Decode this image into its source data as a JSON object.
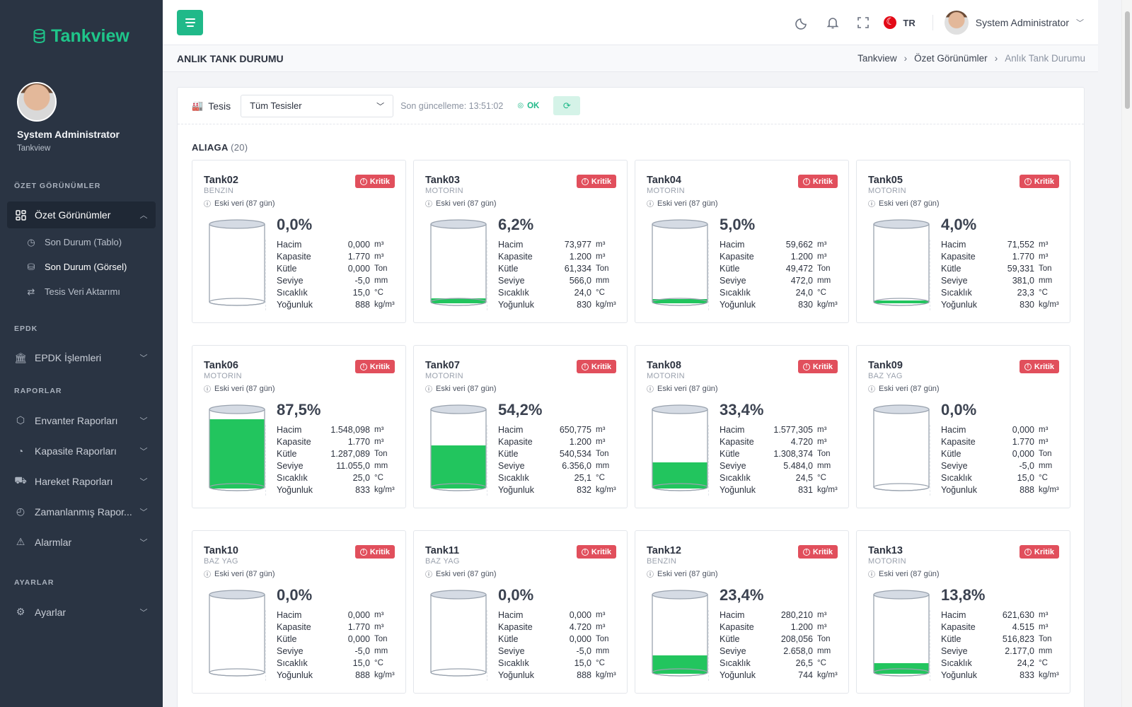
{
  "app": {
    "brand": "Tankview",
    "accent": "#20b989",
    "danger": "#e14f5c"
  },
  "sidebar": {
    "user_name": "System Administrator",
    "user_org": "Tankview",
    "section_overview": "ÖZET GÖRÜNÜMLER",
    "overview_item": "Özet Görünümler",
    "sub_items": [
      "Son Durum (Tablo)",
      "Son Durum (Görsel)",
      "Tesis Veri Aktarımı"
    ],
    "section_epdk": "EPDK",
    "epdk_item": "EPDK İşlemleri",
    "section_reports": "RAPORLAR",
    "report_items": [
      "Envanter Raporları",
      "Kapasite Raporları",
      "Hareket Raporları",
      "Zamanlanmış Rapor...",
      "Alarmlar"
    ],
    "section_settings": "AYARLAR",
    "settings_item": "Ayarlar"
  },
  "topbar": {
    "lang": "TR",
    "user": "System Administrator"
  },
  "page": {
    "title": "ANLIK TANK DURUMU",
    "breadcrumb": [
      "Tankview",
      "Özet Görünümler",
      "Anlık Tank Durumu"
    ]
  },
  "filter": {
    "label": "Tesis",
    "select_value": "Tüm Tesisler",
    "last_update": "Son güncelleme: 13:51:02",
    "status": "OK"
  },
  "group": {
    "name": "ALIAGA",
    "count": "(20)"
  },
  "metric_labels": [
    "Hacim",
    "Kapasite",
    "Kütle",
    "Seviye",
    "Sıcaklık",
    "Yoğunluk"
  ],
  "metric_units": [
    "m³",
    "m³",
    "Ton",
    "mm",
    "°C",
    "kg/m³"
  ],
  "badge_label": "Kritik",
  "stale_label": "Eski veri (87 gün)",
  "tanks": [
    {
      "name": "Tank02",
      "product": "BENZIN",
      "percent": "0,0%",
      "fill": 0.0,
      "values": [
        "0,000",
        "1.770",
        "0,000",
        "-5,0",
        "15,0",
        "888"
      ]
    },
    {
      "name": "Tank03",
      "product": "MOTORIN",
      "percent": "6,2%",
      "fill": 0.062,
      "values": [
        "73,977",
        "1.200",
        "61,334",
        "566,0",
        "24,0",
        "830"
      ]
    },
    {
      "name": "Tank04",
      "product": "MOTORIN",
      "percent": "5,0%",
      "fill": 0.05,
      "values": [
        "59,662",
        "1.200",
        "49,472",
        "472,0",
        "24,0",
        "830"
      ]
    },
    {
      "name": "Tank05",
      "product": "MOTORIN",
      "percent": "4,0%",
      "fill": 0.04,
      "values": [
        "71,552",
        "1.770",
        "59,331",
        "381,0",
        "23,3",
        "830"
      ]
    },
    {
      "name": "Tank06",
      "product": "MOTORIN",
      "percent": "87,5%",
      "fill": 0.875,
      "values": [
        "1.548,098",
        "1.770",
        "1.287,089",
        "11.055,0",
        "25,0",
        "833"
      ]
    },
    {
      "name": "Tank07",
      "product": "MOTORIN",
      "percent": "54,2%",
      "fill": 0.542,
      "values": [
        "650,775",
        "1.200",
        "540,534",
        "6.356,0",
        "25,1",
        "832"
      ]
    },
    {
      "name": "Tank08",
      "product": "MOTORIN",
      "percent": "33,4%",
      "fill": 0.334,
      "values": [
        "1.577,305",
        "4.720",
        "1.308,374",
        "5.484,0",
        "24,5",
        "831"
      ]
    },
    {
      "name": "Tank09",
      "product": "BAZ YAG",
      "percent": "0,0%",
      "fill": 0.0,
      "values": [
        "0,000",
        "1.770",
        "0,000",
        "-5,0",
        "15,0",
        "888"
      ]
    },
    {
      "name": "Tank10",
      "product": "BAZ YAG",
      "percent": "0,0%",
      "fill": 0.0,
      "values": [
        "0,000",
        "1.770",
        "0,000",
        "-5,0",
        "15,0",
        "888"
      ]
    },
    {
      "name": "Tank11",
      "product": "BAZ YAG",
      "percent": "0,0%",
      "fill": 0.0,
      "values": [
        "0,000",
        "4.720",
        "0,000",
        "-5,0",
        "15,0",
        "888"
      ]
    },
    {
      "name": "Tank12",
      "product": "BENZIN",
      "percent": "23,4%",
      "fill": 0.234,
      "values": [
        "280,210",
        "1.200",
        "208,056",
        "2.658,0",
        "26,5",
        "744"
      ]
    },
    {
      "name": "Tank13",
      "product": "MOTORIN",
      "percent": "13,8%",
      "fill": 0.138,
      "values": [
        "621,630",
        "4.515",
        "516,823",
        "2.177,0",
        "24,2",
        "833"
      ]
    }
  ]
}
